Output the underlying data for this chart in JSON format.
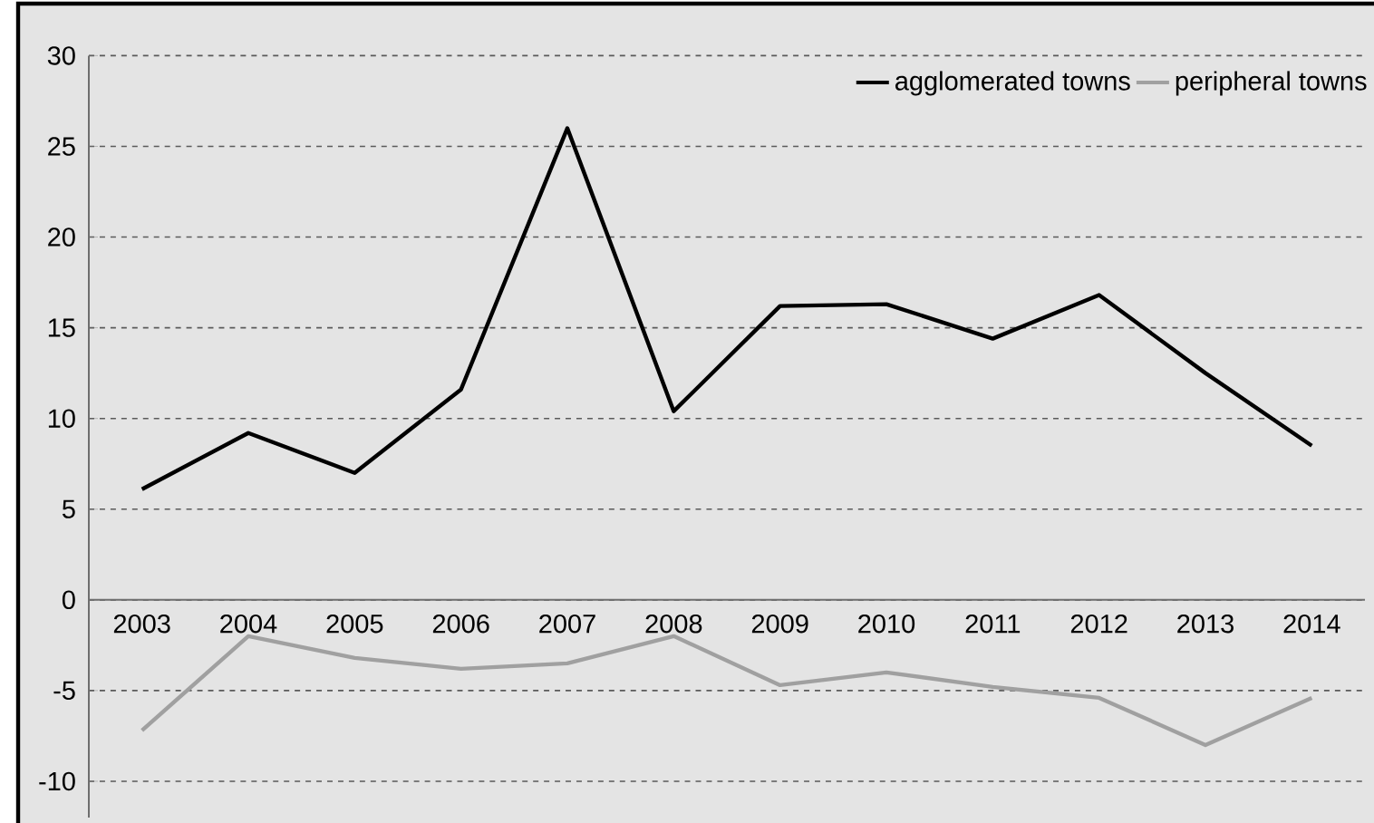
{
  "chart_data": {
    "type": "line",
    "categories": [
      "2003",
      "2004",
      "2005",
      "2006",
      "2007",
      "2008",
      "2009",
      "2010",
      "2011",
      "2012",
      "2013",
      "2014"
    ],
    "series": [
      {
        "name": "agglomerated towns",
        "color": "#000000",
        "values": [
          6.1,
          9.2,
          7.0,
          11.6,
          26.0,
          10.4,
          16.2,
          16.3,
          14.4,
          16.8,
          12.5,
          8.5
        ]
      },
      {
        "name": "peripheral towns",
        "color": "#a0a0a0",
        "values": [
          -7.2,
          -2.0,
          -3.2,
          -3.8,
          -3.5,
          -2.0,
          -4.7,
          -4.0,
          -4.8,
          -5.4,
          -8.0,
          -5.4
        ]
      }
    ],
    "ylim": [
      -12,
      30
    ],
    "yticks": [
      -10,
      -5,
      0,
      5,
      10,
      15,
      20,
      25,
      30
    ],
    "grid": "y",
    "legend": "top right",
    "marker": "none",
    "line_style": "solid"
  }
}
